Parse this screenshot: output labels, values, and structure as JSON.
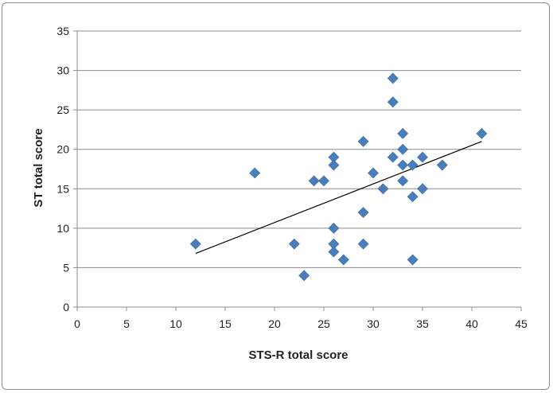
{
  "chart_data": {
    "type": "scatter",
    "xlabel": "STS-R total score",
    "ylabel": "ST total score",
    "xlim": [
      0,
      45
    ],
    "ylim": [
      0,
      35
    ],
    "x_ticks": [
      0,
      5,
      10,
      15,
      20,
      25,
      30,
      35,
      40,
      45
    ],
    "y_ticks": [
      0,
      5,
      10,
      15,
      20,
      25,
      30,
      35
    ],
    "grid": "horizontal",
    "legend": "none",
    "marker": "diamond",
    "marker_color": "#4a7ebb",
    "trendline_color": "#000000",
    "trendline": {
      "x": [
        12,
        41
      ],
      "y": [
        6.8,
        21.0
      ]
    },
    "points": [
      {
        "x": 12,
        "y": 8
      },
      {
        "x": 18,
        "y": 17
      },
      {
        "x": 22,
        "y": 8
      },
      {
        "x": 23,
        "y": 4
      },
      {
        "x": 24,
        "y": 16
      },
      {
        "x": 25,
        "y": 16
      },
      {
        "x": 26,
        "y": 19
      },
      {
        "x": 26,
        "y": 18
      },
      {
        "x": 26,
        "y": 10
      },
      {
        "x": 26,
        "y": 8
      },
      {
        "x": 26,
        "y": 7
      },
      {
        "x": 27,
        "y": 6
      },
      {
        "x": 29,
        "y": 21
      },
      {
        "x": 29,
        "y": 12
      },
      {
        "x": 29,
        "y": 8
      },
      {
        "x": 30,
        "y": 17
      },
      {
        "x": 31,
        "y": 15
      },
      {
        "x": 32,
        "y": 29
      },
      {
        "x": 32,
        "y": 26
      },
      {
        "x": 32,
        "y": 19
      },
      {
        "x": 33,
        "y": 22
      },
      {
        "x": 33,
        "y": 20
      },
      {
        "x": 33,
        "y": 18
      },
      {
        "x": 33,
        "y": 16
      },
      {
        "x": 34,
        "y": 18
      },
      {
        "x": 34,
        "y": 14
      },
      {
        "x": 34,
        "y": 6
      },
      {
        "x": 35,
        "y": 19
      },
      {
        "x": 35,
        "y": 15
      },
      {
        "x": 37,
        "y": 18
      },
      {
        "x": 41,
        "y": 22
      }
    ]
  }
}
